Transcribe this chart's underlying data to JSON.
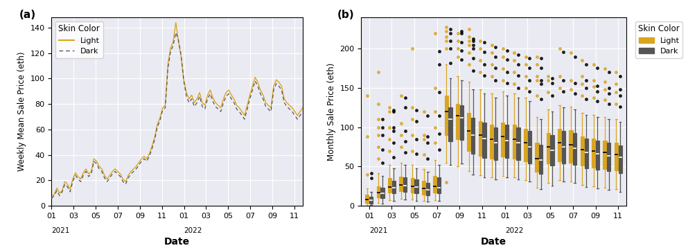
{
  "light_color": "#DAA520",
  "dark_color": "#555555",
  "bg_color": "#EAEAF2",
  "fig_bg": "#ffffff",
  "panel_a_label": "(a)",
  "panel_b_label": "(b)",
  "ylabel_a": "Weekly Mean Sale Price (eth)",
  "ylabel_b": "Monthly Sale Price (eth)",
  "xlabel": "Date",
  "legend_title": "Skin Color",
  "legend_light": "Light",
  "legend_dark": "Dark",
  "line_light_y": [
    8,
    9,
    14,
    10,
    12,
    19,
    17,
    13,
    21,
    26,
    23,
    21,
    26,
    29,
    25,
    27,
    37,
    35,
    31,
    29,
    24,
    21,
    24,
    27,
    29,
    27,
    25,
    21,
    19,
    24,
    27,
    29,
    31,
    34,
    37,
    39,
    37,
    41,
    47,
    54,
    64,
    69,
    77,
    79,
    111,
    124,
    129,
    144,
    129,
    117,
    99,
    89,
    84,
    87,
    81,
    84,
    89,
    81,
    79,
    87,
    91,
    85,
    81,
    79,
    77,
    84,
    89,
    91,
    87,
    84,
    79,
    77,
    74,
    71,
    79,
    87,
    94,
    101,
    97,
    91,
    87,
    81,
    79,
    77,
    94,
    99,
    97,
    94,
    84,
    81,
    79,
    77,
    74,
    71,
    74,
    77
  ],
  "line_dark_y": [
    6,
    8,
    12,
    8,
    11,
    17,
    15,
    11,
    19,
    24,
    21,
    19,
    24,
    27,
    23,
    25,
    35,
    33,
    29,
    27,
    22,
    19,
    22,
    25,
    27,
    25,
    23,
    19,
    17,
    22,
    25,
    27,
    29,
    32,
    35,
    37,
    35,
    39,
    45,
    52,
    62,
    67,
    75,
    77,
    108,
    121,
    126,
    136,
    130,
    118,
    98,
    86,
    81,
    84,
    78,
    81,
    86,
    78,
    76,
    84,
    88,
    82,
    78,
    76,
    74,
    81,
    86,
    88,
    84,
    81,
    76,
    74,
    71,
    68,
    76,
    84,
    91,
    98,
    94,
    88,
    84,
    78,
    76,
    74,
    91,
    96,
    94,
    91,
    81,
    78,
    76,
    74,
    71,
    68,
    71,
    74
  ],
  "light_boxes": [
    {
      "med": 8,
      "q1": 4,
      "q3": 14,
      "whislo": 1,
      "whishi": 22,
      "fliers_lo": [],
      "fliers_hi": [
        40,
        88,
        140
      ]
    },
    {
      "med": 17,
      "q1": 11,
      "q3": 25,
      "whislo": 4,
      "whishi": 42,
      "fliers_lo": [],
      "fliers_hi": [
        60,
        75,
        90,
        100,
        110,
        130,
        170
      ]
    },
    {
      "med": 24,
      "q1": 17,
      "q3": 35,
      "whislo": 7,
      "whishi": 52,
      "fliers_lo": [],
      "fliers_hi": [
        70,
        85,
        100,
        120,
        125
      ]
    },
    {
      "med": 27,
      "q1": 19,
      "q3": 37,
      "whislo": 9,
      "whishi": 55,
      "fliers_lo": [],
      "fliers_hi": [
        75,
        90,
        105,
        140
      ]
    },
    {
      "med": 25,
      "q1": 17,
      "q3": 35,
      "whislo": 8,
      "whishi": 52,
      "fliers_lo": [],
      "fliers_hi": [
        70,
        90,
        110,
        125,
        200
      ]
    },
    {
      "med": 22,
      "q1": 14,
      "q3": 32,
      "whislo": 6,
      "whishi": 47,
      "fliers_lo": [],
      "fliers_hi": [
        65,
        85,
        90,
        120
      ]
    },
    {
      "med": 25,
      "q1": 17,
      "q3": 38,
      "whislo": 7,
      "whishi": 58,
      "fliers_lo": [],
      "fliers_hi": [
        80,
        100,
        120,
        150,
        220
      ]
    },
    {
      "med": 120,
      "q1": 90,
      "q3": 140,
      "whislo": 55,
      "whishi": 180,
      "fliers_lo": [
        30
      ],
      "fliers_hi": [
        200,
        210,
        215,
        222,
        228
      ]
    },
    {
      "med": 115,
      "q1": 85,
      "q3": 130,
      "whislo": 50,
      "whishi": 165,
      "fliers_lo": [],
      "fliers_hi": [
        190,
        200,
        210,
        220
      ]
    },
    {
      "med": 95,
      "q1": 70,
      "q3": 118,
      "whislo": 44,
      "whishi": 158,
      "fliers_lo": [],
      "fliers_hi": [
        180,
        195,
        205,
        210,
        215,
        225
      ]
    },
    {
      "med": 90,
      "q1": 64,
      "q3": 108,
      "whislo": 39,
      "whishi": 148,
      "fliers_lo": [],
      "fliers_hi": [
        170,
        185,
        200,
        210
      ]
    },
    {
      "med": 85,
      "q1": 60,
      "q3": 103,
      "whislo": 36,
      "whishi": 143,
      "fliers_lo": [],
      "fliers_hi": [
        165,
        180,
        195,
        205
      ]
    },
    {
      "med": 88,
      "q1": 63,
      "q3": 106,
      "whislo": 38,
      "whishi": 146,
      "fliers_lo": [],
      "fliers_hi": [
        160,
        175,
        190,
        200
      ]
    },
    {
      "med": 85,
      "q1": 60,
      "q3": 103,
      "whislo": 36,
      "whishi": 143,
      "fliers_lo": [],
      "fliers_hi": [
        155,
        170,
        185,
        195
      ]
    },
    {
      "med": 80,
      "q1": 57,
      "q3": 98,
      "whislo": 33,
      "whishi": 138,
      "fliers_lo": [],
      "fliers_hi": [
        150,
        165,
        180,
        190
      ]
    },
    {
      "med": 60,
      "q1": 43,
      "q3": 80,
      "whislo": 23,
      "whishi": 113,
      "fliers_lo": [],
      "fliers_hi": [
        140,
        160,
        165,
        180,
        190
      ]
    },
    {
      "med": 75,
      "q1": 54,
      "q3": 93,
      "whislo": 29,
      "whishi": 123,
      "fliers_lo": [],
      "fliers_hi": [
        145,
        160,
        165
      ]
    },
    {
      "med": 80,
      "q1": 57,
      "q3": 98,
      "whislo": 33,
      "whishi": 128,
      "fliers_lo": [],
      "fliers_hi": [
        150,
        165,
        200
      ]
    },
    {
      "med": 78,
      "q1": 55,
      "q3": 96,
      "whislo": 31,
      "whishi": 126,
      "fliers_lo": [],
      "fliers_hi": [
        148,
        160,
        195
      ]
    },
    {
      "med": 72,
      "q1": 51,
      "q3": 88,
      "whislo": 27,
      "whishi": 118,
      "fliers_lo": [],
      "fliers_hi": [
        140,
        155,
        165,
        185
      ]
    },
    {
      "med": 70,
      "q1": 49,
      "q3": 86,
      "whislo": 25,
      "whishi": 116,
      "fliers_lo": [],
      "fliers_hi": [
        138,
        152,
        160,
        180
      ]
    },
    {
      "med": 68,
      "q1": 47,
      "q3": 83,
      "whislo": 23,
      "whishi": 113,
      "fliers_lo": [],
      "fliers_hi": [
        135,
        148,
        158,
        175
      ]
    },
    {
      "med": 65,
      "q1": 45,
      "q3": 80,
      "whislo": 21,
      "whishi": 110,
      "fliers_lo": [],
      "fliers_hi": [
        130,
        145,
        155,
        170
      ]
    }
  ],
  "dark_boxes": [
    {
      "med": 7,
      "q1": 3,
      "q3": 12,
      "whislo": 1,
      "whishi": 18,
      "fliers_lo": [],
      "fliers_hi": [
        35,
        42
      ]
    },
    {
      "med": 16,
      "q1": 10,
      "q3": 23,
      "whislo": 3,
      "whishi": 38,
      "fliers_lo": [],
      "fliers_hi": [
        55,
        72,
        90,
        100,
        110
      ]
    },
    {
      "med": 23,
      "q1": 16,
      "q3": 32,
      "whislo": 6,
      "whishi": 48,
      "fliers_lo": [],
      "fliers_hi": [
        62,
        80,
        95,
        100,
        120,
        122
      ]
    },
    {
      "med": 26,
      "q1": 18,
      "q3": 36,
      "whislo": 8,
      "whishi": 52,
      "fliers_lo": [],
      "fliers_hi": [
        68,
        82,
        95,
        125,
        138
      ]
    },
    {
      "med": 24,
      "q1": 16,
      "q3": 34,
      "whislo": 6,
      "whishi": 48,
      "fliers_lo": [],
      "fliers_hi": [
        66,
        85,
        108,
        122
      ]
    },
    {
      "med": 20,
      "q1": 13,
      "q3": 29,
      "whislo": 5,
      "whishi": 43,
      "fliers_lo": [],
      "fliers_hi": [
        60,
        80,
        88,
        115
      ]
    },
    {
      "med": 23,
      "q1": 16,
      "q3": 36,
      "whislo": 6,
      "whishi": 52,
      "fliers_lo": [],
      "fliers_hi": [
        72,
        92,
        115,
        145,
        180,
        197
      ]
    },
    {
      "med": 110,
      "q1": 82,
      "q3": 125,
      "whislo": 52,
      "whishi": 162,
      "fliers_lo": [],
      "fliers_hi": [
        182,
        200,
        210,
        220,
        225
      ]
    },
    {
      "med": 112,
      "q1": 84,
      "q3": 128,
      "whislo": 54,
      "whishi": 160,
      "fliers_lo": [],
      "fliers_hi": [
        186,
        198,
        208,
        220,
        222
      ]
    },
    {
      "med": 90,
      "q1": 66,
      "q3": 112,
      "whislo": 40,
      "whishi": 148,
      "fliers_lo": [],
      "fliers_hi": [
        172,
        188,
        200,
        205,
        210,
        213
      ]
    },
    {
      "med": 86,
      "q1": 61,
      "q3": 106,
      "whislo": 36,
      "whishi": 143,
      "fliers_lo": [],
      "fliers_hi": [
        166,
        180,
        196,
        208
      ]
    },
    {
      "med": 80,
      "q1": 58,
      "q3": 100,
      "whislo": 34,
      "whishi": 138,
      "fliers_lo": [],
      "fliers_hi": [
        160,
        176,
        190,
        202
      ]
    },
    {
      "med": 83,
      "q1": 61,
      "q3": 103,
      "whislo": 36,
      "whishi": 140,
      "fliers_lo": [],
      "fliers_hi": [
        156,
        170,
        186,
        198
      ]
    },
    {
      "med": 80,
      "q1": 58,
      "q3": 100,
      "whislo": 34,
      "whishi": 138,
      "fliers_lo": [],
      "fliers_hi": [
        150,
        166,
        180,
        192
      ]
    },
    {
      "med": 75,
      "q1": 54,
      "q3": 95,
      "whislo": 31,
      "whishi": 133,
      "fliers_lo": [],
      "fliers_hi": [
        146,
        160,
        176,
        188
      ]
    },
    {
      "med": 58,
      "q1": 41,
      "q3": 78,
      "whislo": 21,
      "whishi": 110,
      "fliers_lo": [],
      "fliers_hi": [
        136,
        155,
        160,
        176,
        188
      ]
    },
    {
      "med": 71,
      "q1": 51,
      "q3": 90,
      "whislo": 26,
      "whishi": 120,
      "fliers_lo": [],
      "fliers_hi": [
        140,
        156,
        162
      ]
    },
    {
      "med": 75,
      "q1": 54,
      "q3": 95,
      "whislo": 31,
      "whishi": 125,
      "fliers_lo": [],
      "fliers_hi": [
        146,
        160,
        196
      ]
    },
    {
      "med": 73,
      "q1": 52,
      "q3": 93,
      "whislo": 29,
      "whishi": 123,
      "fliers_lo": [],
      "fliers_hi": [
        143,
        156,
        190
      ]
    },
    {
      "med": 68,
      "q1": 48,
      "q3": 86,
      "whislo": 24,
      "whishi": 116,
      "fliers_lo": [],
      "fliers_hi": [
        136,
        150,
        160,
        180
      ]
    },
    {
      "med": 66,
      "q1": 46,
      "q3": 83,
      "whislo": 22,
      "whishi": 113,
      "fliers_lo": [],
      "fliers_hi": [
        133,
        146,
        153,
        176
      ]
    },
    {
      "med": 64,
      "q1": 44,
      "q3": 80,
      "whislo": 20,
      "whishi": 110,
      "fliers_lo": [],
      "fliers_hi": [
        130,
        143,
        150,
        170
      ]
    },
    {
      "med": 62,
      "q1": 42,
      "q3": 77,
      "whislo": 18,
      "whishi": 107,
      "fliers_lo": [],
      "fliers_hi": [
        126,
        140,
        148,
        165
      ]
    }
  ]
}
